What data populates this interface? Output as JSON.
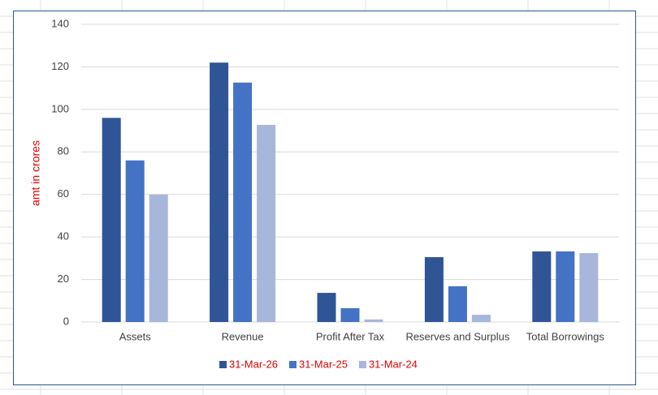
{
  "chart_data": {
    "type": "bar",
    "y_label": "amt in crores",
    "categories": [
      "Assets",
      "Revenue",
      "Profit After Tax",
      "Reserves and Surplus",
      "Total Borrowings"
    ],
    "series": [
      {
        "name": "31-Mar-26",
        "color": "#2f5597",
        "values": [
          96,
          122,
          13.7,
          30.5,
          33.2
        ]
      },
      {
        "name": "31-Mar-25",
        "color": "#4472c4",
        "values": [
          76,
          112.6,
          6.5,
          16.8,
          33.2
        ]
      },
      {
        "name": "31-Mar-24",
        "color": "#a9b6db",
        "values": [
          60,
          92.7,
          1.2,
          3.4,
          32.4
        ]
      }
    ],
    "ylim": [
      0,
      140
    ],
    "yticks": [
      0,
      20,
      40,
      60,
      80,
      100,
      120,
      140
    ],
    "grid": true,
    "legend": "bottom",
    "label_color": "#e00000"
  }
}
